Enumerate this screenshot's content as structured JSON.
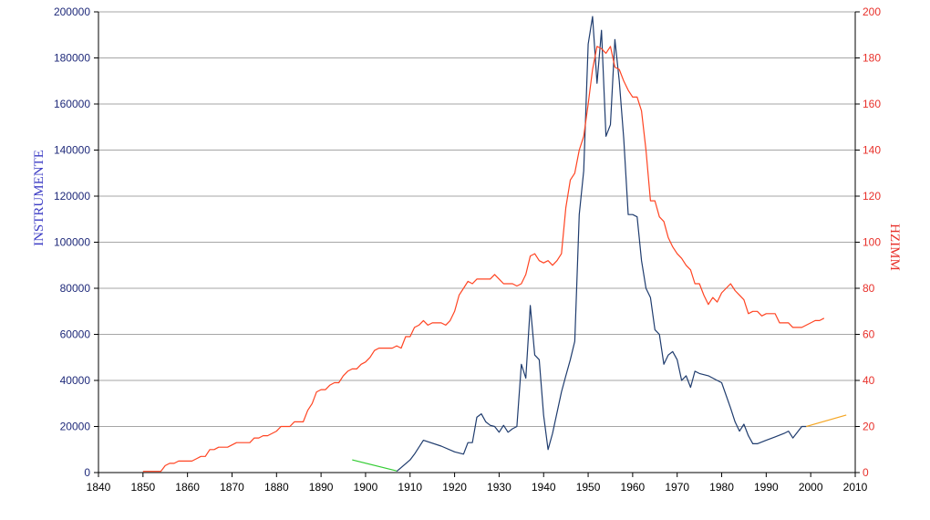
{
  "chart_data": {
    "type": "line",
    "title": "",
    "xlabel": "",
    "ylabel": "INSTRUMENTE",
    "ylabel_right": "HZIMM",
    "xlim": [
      1840,
      2010
    ],
    "ylim": [
      0,
      200000
    ],
    "ylim_right": [
      0,
      200
    ],
    "grid": true,
    "legend": "none",
    "x_ticks": [
      "1840",
      "1850",
      "1860",
      "1870",
      "1880",
      "1890",
      "1900",
      "1910",
      "1920",
      "1930",
      "1940",
      "1950",
      "1960",
      "1970",
      "1980",
      "1990",
      "2000",
      "2010"
    ],
    "y_ticks": [
      "0",
      "20000",
      "40000",
      "60000",
      "80000",
      "100000",
      "120000",
      "140000",
      "160000",
      "180000",
      "200000"
    ],
    "y_ticks_right": [
      "0",
      "20",
      "40",
      "60",
      "80",
      "100",
      "120",
      "140",
      "160",
      "180",
      "200"
    ],
    "colors": {
      "left_axis_text": "#1f2a7a",
      "right_axis_text": "#e8302a",
      "grid": "#a6a6a6"
    },
    "series": [
      {
        "axis": "left",
        "color": "#1f3c6e",
        "points": [
          [
            1907,
            500
          ],
          [
            1910,
            5500
          ],
          [
            1911,
            8000
          ],
          [
            1913,
            14000
          ],
          [
            1917,
            11500
          ],
          [
            1920,
            9000
          ],
          [
            1922,
            8000
          ],
          [
            1923,
            13000
          ],
          [
            1924,
            13000
          ],
          [
            1925,
            24000
          ],
          [
            1926,
            25500
          ],
          [
            1927,
            22000
          ],
          [
            1928,
            20500
          ],
          [
            1929,
            20000
          ],
          [
            1930,
            17500
          ],
          [
            1931,
            20500
          ],
          [
            1932,
            17500
          ],
          [
            1933,
            19000
          ],
          [
            1934,
            20000
          ],
          [
            1935,
            47000
          ],
          [
            1936,
            41000
          ],
          [
            1937,
            72500
          ],
          [
            1938,
            51000
          ],
          [
            1939,
            49000
          ],
          [
            1940,
            25000
          ],
          [
            1941,
            10000
          ],
          [
            1942,
            17000
          ],
          [
            1943,
            26000
          ],
          [
            1944,
            35000
          ],
          [
            1945,
            42000
          ],
          [
            1946,
            49000
          ],
          [
            1947,
            57000
          ],
          [
            1948,
            112000
          ],
          [
            1949,
            131000
          ],
          [
            1950,
            186000
          ],
          [
            1951,
            198000
          ],
          [
            1952,
            169000
          ],
          [
            1953,
            192000
          ],
          [
            1954,
            146000
          ],
          [
            1955,
            151000
          ],
          [
            1956,
            188000
          ],
          [
            1957,
            170000
          ],
          [
            1958,
            145000
          ],
          [
            1959,
            112000
          ],
          [
            1960,
            112000
          ],
          [
            1961,
            111000
          ],
          [
            1962,
            92000
          ],
          [
            1963,
            80000
          ],
          [
            1964,
            76000
          ],
          [
            1965,
            62000
          ],
          [
            1966,
            60000
          ],
          [
            1967,
            47000
          ],
          [
            1968,
            51000
          ],
          [
            1969,
            52500
          ],
          [
            1970,
            49000
          ],
          [
            1971,
            40000
          ],
          [
            1972,
            42000
          ],
          [
            1973,
            37000
          ],
          [
            1974,
            44000
          ],
          [
            1975,
            43000
          ],
          [
            1977,
            42000
          ],
          [
            1979,
            40000
          ],
          [
            1980,
            39000
          ],
          [
            1982,
            28000
          ],
          [
            1983,
            22000
          ],
          [
            1984,
            18000
          ],
          [
            1985,
            21000
          ],
          [
            1986,
            16000
          ],
          [
            1987,
            12500
          ],
          [
            1988,
            12500
          ],
          [
            1990,
            14000
          ],
          [
            1992,
            15500
          ],
          [
            1994,
            17000
          ],
          [
            1995,
            18000
          ],
          [
            1996,
            15000
          ],
          [
            1998,
            20000
          ],
          [
            1999,
            20000
          ]
        ]
      },
      {
        "axis": "left",
        "color": "#33cc33",
        "points": [
          [
            1897,
            5500
          ],
          [
            1907,
            700
          ]
        ]
      },
      {
        "axis": "left",
        "color": "#f5a623",
        "points": [
          [
            1999,
            20000
          ],
          [
            2008,
            25000
          ]
        ]
      },
      {
        "axis": "right",
        "color": "#ff4422",
        "points": [
          [
            1850,
            0.5
          ],
          [
            1854,
            0.5
          ],
          [
            1855,
            3
          ],
          [
            1856,
            4
          ],
          [
            1857,
            4
          ],
          [
            1858,
            5
          ],
          [
            1860,
            5
          ],
          [
            1861,
            5
          ],
          [
            1862,
            6
          ],
          [
            1863,
            7
          ],
          [
            1864,
            7
          ],
          [
            1865,
            10
          ],
          [
            1866,
            10
          ],
          [
            1867,
            11
          ],
          [
            1869,
            11
          ],
          [
            1870,
            12
          ],
          [
            1871,
            13
          ],
          [
            1874,
            13
          ],
          [
            1875,
            15
          ],
          [
            1876,
            15
          ],
          [
            1877,
            16
          ],
          [
            1878,
            16
          ],
          [
            1879,
            17
          ],
          [
            1880,
            18
          ],
          [
            1881,
            20
          ],
          [
            1883,
            20
          ],
          [
            1884,
            22
          ],
          [
            1886,
            22
          ],
          [
            1887,
            27
          ],
          [
            1888,
            30
          ],
          [
            1889,
            35
          ],
          [
            1890,
            36
          ],
          [
            1891,
            36
          ],
          [
            1892,
            38
          ],
          [
            1893,
            39
          ],
          [
            1894,
            39
          ],
          [
            1895,
            42
          ],
          [
            1896,
            44
          ],
          [
            1897,
            45
          ],
          [
            1898,
            45
          ],
          [
            1899,
            47
          ],
          [
            1900,
            48
          ],
          [
            1901,
            50
          ],
          [
            1902,
            53
          ],
          [
            1903,
            54
          ],
          [
            1906,
            54
          ],
          [
            1907,
            55
          ],
          [
            1908,
            54
          ],
          [
            1909,
            59
          ],
          [
            1910,
            59
          ],
          [
            1911,
            63
          ],
          [
            1912,
            64
          ],
          [
            1913,
            66
          ],
          [
            1914,
            64
          ],
          [
            1915,
            65
          ],
          [
            1917,
            65
          ],
          [
            1918,
            64
          ],
          [
            1919,
            66
          ],
          [
            1920,
            70
          ],
          [
            1921,
            77
          ],
          [
            1922,
            80
          ],
          [
            1923,
            83
          ],
          [
            1924,
            82
          ],
          [
            1925,
            84
          ],
          [
            1928,
            84
          ],
          [
            1929,
            86
          ],
          [
            1930,
            84
          ],
          [
            1931,
            82
          ],
          [
            1933,
            82
          ],
          [
            1934,
            81
          ],
          [
            1935,
            82
          ],
          [
            1936,
            86
          ],
          [
            1937,
            94
          ],
          [
            1938,
            95
          ],
          [
            1939,
            92
          ],
          [
            1940,
            91
          ],
          [
            1941,
            92
          ],
          [
            1942,
            90
          ],
          [
            1943,
            92
          ],
          [
            1944,
            95
          ],
          [
            1945,
            115
          ],
          [
            1946,
            127
          ],
          [
            1947,
            130
          ],
          [
            1948,
            140
          ],
          [
            1949,
            146
          ],
          [
            1950,
            160
          ],
          [
            1951,
            175
          ],
          [
            1952,
            185
          ],
          [
            1953,
            184
          ],
          [
            1954,
            182
          ],
          [
            1955,
            185
          ],
          [
            1956,
            176
          ],
          [
            1957,
            175
          ],
          [
            1958,
            170
          ],
          [
            1959,
            166
          ],
          [
            1960,
            163
          ],
          [
            1961,
            163
          ],
          [
            1962,
            157
          ],
          [
            1963,
            140
          ],
          [
            1964,
            118
          ],
          [
            1965,
            118
          ],
          [
            1966,
            111
          ],
          [
            1967,
            109
          ],
          [
            1968,
            102
          ],
          [
            1969,
            98
          ],
          [
            1970,
            95
          ],
          [
            1971,
            93
          ],
          [
            1972,
            90
          ],
          [
            1973,
            88
          ],
          [
            1974,
            82
          ],
          [
            1975,
            82
          ],
          [
            1976,
            77
          ],
          [
            1977,
            73
          ],
          [
            1978,
            76
          ],
          [
            1979,
            74
          ],
          [
            1980,
            78
          ],
          [
            1981,
            80
          ],
          [
            1982,
            82
          ],
          [
            1983,
            79
          ],
          [
            1984,
            77
          ],
          [
            1985,
            75
          ],
          [
            1986,
            69
          ],
          [
            1987,
            70
          ],
          [
            1988,
            70
          ],
          [
            1989,
            68
          ],
          [
            1990,
            69
          ],
          [
            1992,
            69
          ],
          [
            1993,
            65
          ],
          [
            1995,
            65
          ],
          [
            1996,
            63
          ],
          [
            1998,
            63
          ],
          [
            1999,
            64
          ],
          [
            2001,
            66
          ],
          [
            2002,
            66
          ],
          [
            2003,
            67
          ]
        ]
      }
    ]
  }
}
